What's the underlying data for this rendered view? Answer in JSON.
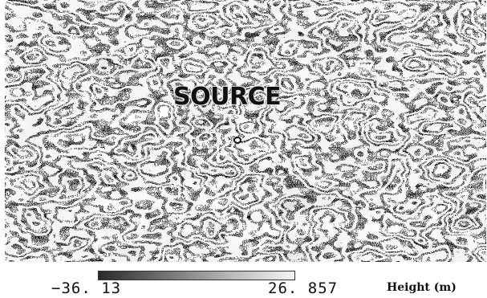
{
  "map": {
    "source_label": "SOURCE"
  },
  "colorbar": {
    "min_label": "−36. 13",
    "max_label": "26. 857",
    "title": "Height  (m)",
    "min_value": -36.13,
    "max_value": 26.857,
    "color_low": "#2a2a2a",
    "color_high": "#f4f4f4"
  }
}
